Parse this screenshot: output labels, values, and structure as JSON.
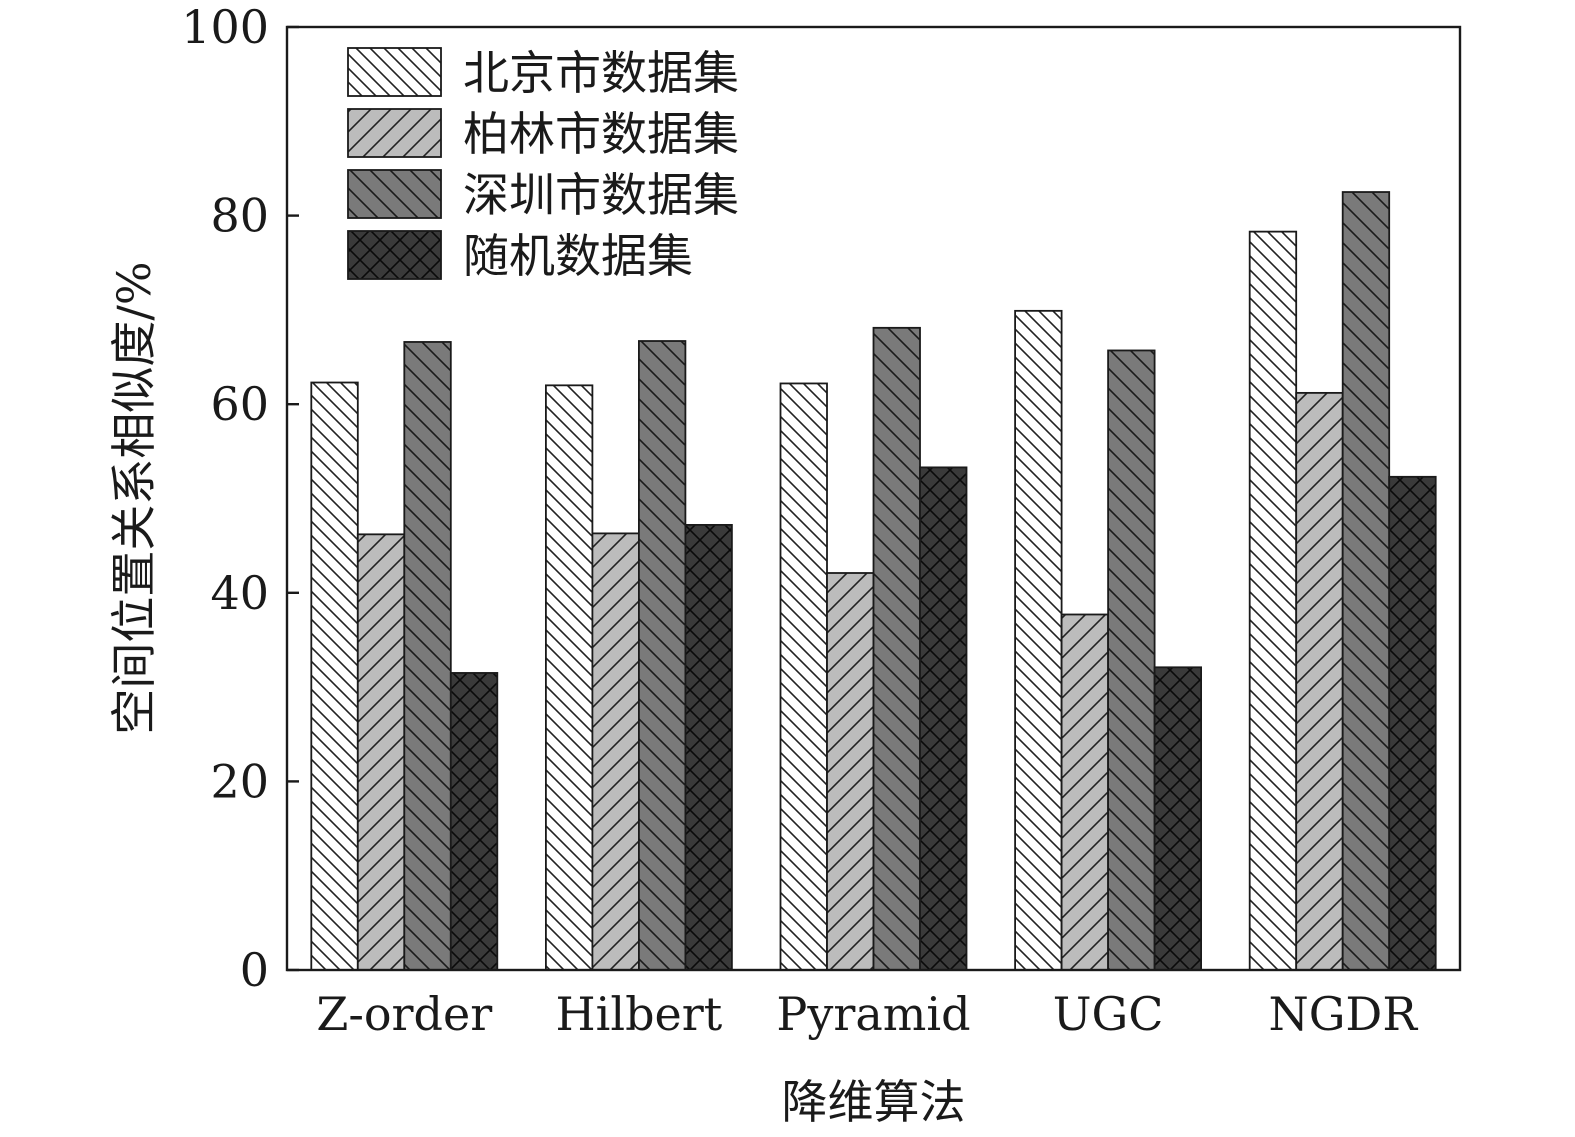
{
  "chart_data": {
    "type": "bar",
    "categories": [
      "Z-order",
      "Hilbert",
      "Pyramid",
      "UGC",
      "NGDR"
    ],
    "series": [
      {
        "name": "北京市数据集",
        "values": [
          62.3,
          62.0,
          62.2,
          69.9,
          78.3
        ],
        "color": "#ffffff",
        "pattern": "hatch-backslash-light"
      },
      {
        "name": "柏林市数据集",
        "values": [
          46.2,
          46.3,
          42.1,
          37.7,
          61.2
        ],
        "color": "#bcbcbc",
        "pattern": "hatch-slash"
      },
      {
        "name": "深圳市数据集",
        "values": [
          66.6,
          66.7,
          68.1,
          65.7,
          82.5
        ],
        "color": "#7a7a7a",
        "pattern": "hatch-backslash-dark"
      },
      {
        "name": "随机数据集",
        "values": [
          31.5,
          47.2,
          53.3,
          32.1,
          52.3
        ],
        "color": "#3a3a3a",
        "pattern": "crosshatch"
      }
    ],
    "xlabel": "降维算法",
    "ylabel": "空间位置关系相似度/%",
    "ylim": [
      0,
      100
    ],
    "yticks": [
      0,
      20,
      40,
      60,
      80,
      100
    ],
    "grid": false,
    "legend_position": "top-left"
  }
}
